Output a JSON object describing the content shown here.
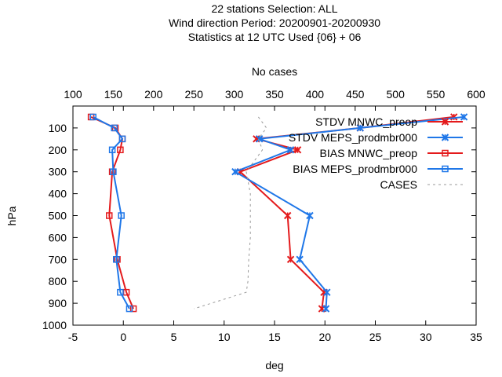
{
  "chart_data": {
    "type": "line",
    "title": [
      "22 stations Selection: ALL",
      "Wind direction  Period: 20200901-20200930",
      "Statistics at 12 UTC  Used {06} + 06"
    ],
    "xlabel": "deg",
    "ylabel": "hPa",
    "x2label": "No cases",
    "xlim": [
      -5,
      35
    ],
    "ylim": [
      1000,
      0
    ],
    "x2lim": [
      100,
      600
    ],
    "xticks": [
      "-5",
      "0",
      "5",
      "10",
      "15",
      "20",
      "25",
      "30",
      "35"
    ],
    "yticks": [
      "100",
      "200",
      "300",
      "400",
      "500",
      "600",
      "700",
      "800",
      "900",
      "1000"
    ],
    "x2ticks": [
      "100",
      "150",
      "200",
      "250",
      "300",
      "350",
      "400",
      "450",
      "500",
      "550",
      "600"
    ],
    "grid": false,
    "legend_position": "top-right",
    "colors": {
      "mnwc": "#e41a1c",
      "meps": "#1f77e8",
      "cases": "#999999"
    },
    "series": [
      {
        "name": "STDV MNWC_preop",
        "marker": "x",
        "color": "mnwc",
        "points": [
          [
            32.8,
            50
          ],
          [
            23.5,
            100
          ],
          [
            13.2,
            150
          ],
          [
            17.3,
            200
          ],
          [
            11.6,
            300
          ],
          [
            16.3,
            500
          ],
          [
            16.6,
            700
          ],
          [
            19.9,
            850
          ],
          [
            19.7,
            925
          ]
        ]
      },
      {
        "name": "STDV MEPS_prodmbr000",
        "marker": "x",
        "color": "meps",
        "points": [
          [
            33.8,
            50
          ],
          [
            23.5,
            100
          ],
          [
            13.5,
            150
          ],
          [
            16.6,
            200
          ],
          [
            11.1,
            300
          ],
          [
            18.5,
            500
          ],
          [
            17.5,
            700
          ],
          [
            20.2,
            850
          ],
          [
            20.1,
            925
          ]
        ]
      },
      {
        "name": "BIAS MNWC_preop",
        "marker": "square",
        "color": "mnwc",
        "points": [
          [
            -3.2,
            50
          ],
          [
            -0.8,
            100
          ],
          [
            -0.1,
            150
          ],
          [
            -0.3,
            200
          ],
          [
            -1.1,
            300
          ],
          [
            -1.4,
            500
          ],
          [
            -0.6,
            700
          ],
          [
            0.3,
            850
          ],
          [
            1.0,
            925
          ]
        ]
      },
      {
        "name": "BIAS MEPS_prodmbr000",
        "marker": "square",
        "color": "meps",
        "points": [
          [
            -3.0,
            50
          ],
          [
            -0.9,
            100
          ],
          [
            -0.1,
            150
          ],
          [
            -1.1,
            200
          ],
          [
            -1.0,
            300
          ],
          [
            -0.2,
            500
          ],
          [
            -0.7,
            700
          ],
          [
            -0.3,
            850
          ],
          [
            0.6,
            925
          ]
        ]
      },
      {
        "name": "CASES",
        "dashed": true,
        "color": "cases",
        "axis": "x2",
        "points": [
          [
            330,
            50
          ],
          [
            340,
            100
          ],
          [
            330,
            150
          ],
          [
            335,
            200
          ],
          [
            315,
            300
          ],
          [
            320,
            400
          ],
          [
            320,
            500
          ],
          [
            320,
            600
          ],
          [
            318,
            700
          ],
          [
            317,
            800
          ],
          [
            315,
            850
          ],
          [
            250,
            925
          ]
        ]
      }
    ]
  }
}
